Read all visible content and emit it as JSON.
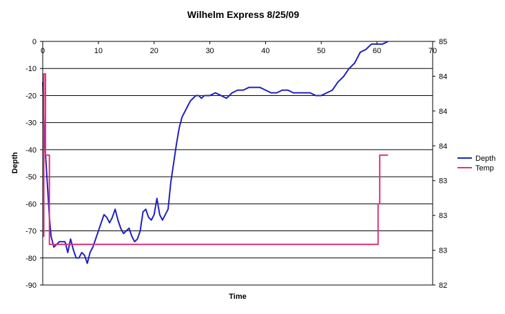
{
  "chart_data": {
    "type": "line",
    "title": "Wilhelm Express 8/25/09",
    "xlabel": "Time",
    "ylabel": "Depth",
    "xlim": [
      0,
      70
    ],
    "ylim": [
      -90,
      0
    ],
    "y2lim": [
      82,
      85
    ],
    "x_ticks": [
      0,
      10,
      20,
      30,
      40,
      50,
      60,
      70
    ],
    "y_ticks": [
      0,
      -10,
      -20,
      -30,
      -40,
      -50,
      -60,
      -70,
      -80,
      -90
    ],
    "y2_tick_labels": [
      "85",
      "84",
      "84",
      "84",
      "83",
      "83",
      "83",
      "82"
    ],
    "grid": "horizontal",
    "legend_position": "right",
    "series": [
      {
        "name": "Depth",
        "axis": "left",
        "color": "#1f1fbf",
        "x": [
          0,
          0.3,
          0.6,
          0.9,
          1.2,
          1.5,
          2,
          2.5,
          3,
          3.5,
          4,
          4.5,
          5,
          5.5,
          6,
          6.5,
          7,
          7.5,
          8,
          8.5,
          9,
          9.5,
          10,
          10.5,
          11,
          11.5,
          12,
          12.5,
          13,
          13.5,
          14,
          14.5,
          15,
          15.5,
          16,
          16.5,
          17,
          17.5,
          18,
          18.5,
          19,
          19.5,
          20,
          20.5,
          21,
          21.5,
          22,
          22.5,
          23,
          23.5,
          24,
          24.5,
          25,
          25.5,
          26,
          26.5,
          27,
          27.5,
          28,
          28.5,
          29,
          30,
          31,
          32,
          33,
          34,
          35,
          36,
          37,
          38,
          39,
          40,
          41,
          42,
          43,
          44,
          45,
          46,
          47,
          48,
          49,
          50,
          51,
          52,
          53,
          54,
          55,
          56,
          57,
          58,
          59,
          60,
          61,
          62
        ],
        "values": [
          -15,
          -35,
          -45,
          -55,
          -65,
          -72,
          -76,
          -75,
          -74,
          -74,
          -74,
          -78,
          -73,
          -77,
          -80,
          -80,
          -78,
          -79,
          -82,
          -78,
          -76,
          -73,
          -70,
          -67,
          -64,
          -65,
          -67,
          -65,
          -62,
          -66,
          -69,
          -71,
          -70,
          -69,
          -72,
          -74,
          -73,
          -70,
          -63,
          -62,
          -65,
          -66,
          -64,
          -58,
          -64,
          -66,
          -64,
          -62,
          -52,
          -45,
          -38,
          -32,
          -28,
          -26,
          -24,
          -22,
          -21,
          -20,
          -20,
          -21,
          -20,
          -20,
          -19,
          -20,
          -21,
          -19,
          -18,
          -18,
          -17,
          -17,
          -17,
          -18,
          -19,
          -19,
          -18,
          -18,
          -19,
          -19,
          -19,
          -19,
          -20,
          -20,
          -19,
          -18,
          -15,
          -13,
          -10,
          -8,
          -4,
          -3,
          -1,
          -1,
          -1,
          0
        ]
      },
      {
        "name": "Temp",
        "axis": "right",
        "color": "#e0307a",
        "x": [
          0,
          0.2,
          0.4,
          0.5,
          0.7,
          1,
          1.1,
          1.2,
          1.3,
          1.5,
          2,
          10,
          20,
          30,
          40,
          50,
          59.5,
          60,
          60.2,
          60.5,
          61,
          61.5,
          62
        ],
        "values": [
          82.6,
          84.6,
          84.6,
          83.6,
          83.6,
          83.6,
          83.6,
          82.5,
          82.5,
          82.5,
          82.5,
          82.5,
          82.5,
          82.5,
          82.5,
          82.5,
          82.5,
          82.5,
          83.0,
          83.6,
          83.6,
          83.6,
          83.6
        ]
      }
    ]
  }
}
